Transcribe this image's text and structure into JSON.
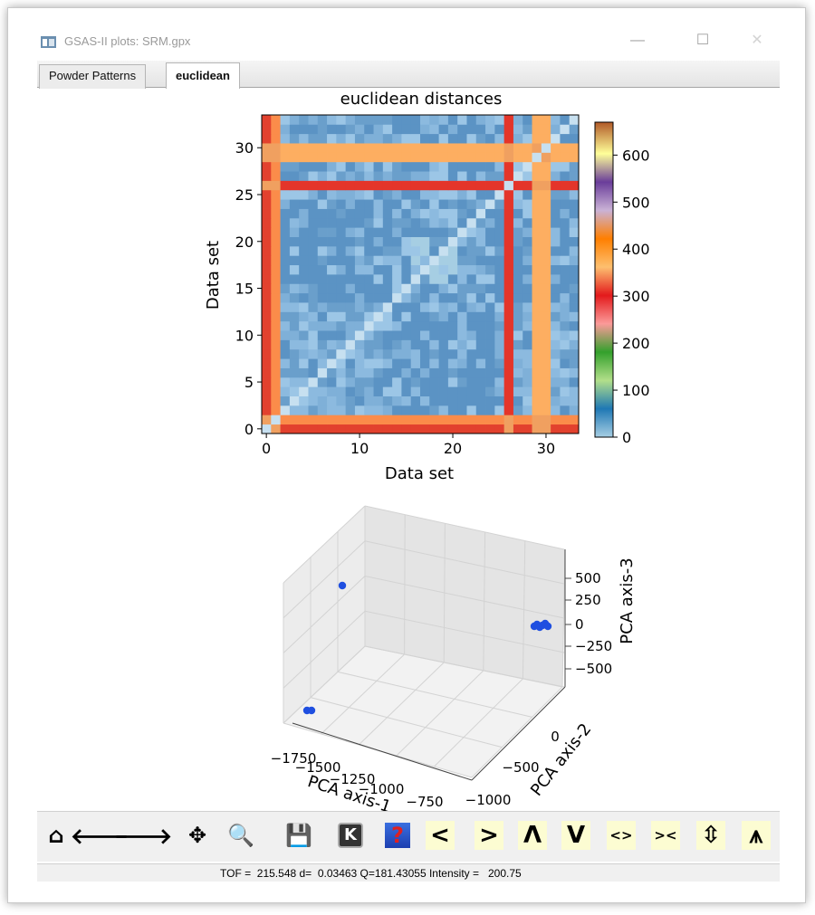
{
  "window": {
    "title": "GSAS-II plots: SRM.gpx",
    "minimize": "—",
    "maximize": "☐",
    "close": "✕"
  },
  "tabs": [
    {
      "label": "Powder Patterns",
      "active": false
    },
    {
      "label": "euclidean",
      "active": true
    }
  ],
  "heatmap": {
    "title": "euclidean distances",
    "xlabel": "Data set",
    "ylabel": "Data set",
    "x_ticks": [
      "0",
      "10",
      "20",
      "30"
    ],
    "y_ticks": [
      "0",
      "5",
      "10",
      "15",
      "20",
      "25",
      "30"
    ],
    "colorbar_ticks": [
      "0",
      "100",
      "200",
      "300",
      "400",
      "500",
      "600"
    ]
  },
  "pca3d": {
    "xlabel": "PCA axis-1",
    "ylabel": "PCA axis-2",
    "zlabel": "PCA axis-3",
    "x_ticks": [
      "-1750",
      "-1500",
      "-1250",
      "-1000",
      "-750"
    ],
    "y_ticks": [
      "0",
      "-500",
      "-1000"
    ],
    "z_ticks": [
      "500",
      "250",
      "0",
      "-250",
      "-500"
    ]
  },
  "chart_data": [
    {
      "type": "heatmap",
      "title": "euclidean distances",
      "xlabel": "Data set",
      "ylabel": "Data set",
      "xlim": [
        0,
        33
      ],
      "ylim": [
        0,
        33
      ],
      "colorbar_range": [
        0,
        670
      ],
      "colormap": "Paired",
      "n": 34,
      "outlier_rows": [
        {
          "index": 0,
          "distance": 290
        },
        {
          "index": 1,
          "distance": 380
        },
        {
          "index": 26,
          "distance": 330
        },
        {
          "index": 29,
          "distance": 420
        },
        {
          "index": 30,
          "distance": 400
        }
      ],
      "background_distance_range": [
        20,
        110
      ]
    },
    {
      "type": "scatter",
      "projection": "3d",
      "xlabel": "PCA axis-1",
      "ylabel": "PCA axis-2",
      "zlabel": "PCA axis-3",
      "color": "#1f4fe0",
      "points": [
        {
          "x": -1750,
          "y": -550,
          "z": 300
        },
        {
          "x": -1700,
          "y": 0,
          "z": -700
        },
        {
          "x": -1690,
          "y": 0,
          "z": -700
        },
        {
          "x": -700,
          "y": -150,
          "z": 0
        },
        {
          "x": -690,
          "y": -140,
          "z": 20
        },
        {
          "x": -680,
          "y": -130,
          "z": 10
        },
        {
          "x": -670,
          "y": -120,
          "z": 0
        },
        {
          "x": -665,
          "y": -110,
          "z": 15
        },
        {
          "x": -700,
          "y": -160,
          "z": -30
        }
      ]
    }
  ],
  "toolbar": {
    "buttons": [
      {
        "name": "home-button",
        "glyph": "⌂",
        "style": "plain"
      },
      {
        "name": "back-button",
        "glyph": "🡐",
        "style": "plain"
      },
      {
        "name": "forward-button",
        "glyph": "🡒",
        "style": "plain"
      },
      {
        "name": "pan-button",
        "glyph": "✥",
        "style": "plain"
      },
      {
        "name": "zoom-button",
        "glyph": "🔍",
        "style": "plain"
      },
      {
        "name": "save-button",
        "glyph": "💾",
        "style": "plain"
      },
      {
        "name": "key-button",
        "glyph": "K",
        "style": "key"
      },
      {
        "name": "help-button",
        "glyph": "?",
        "style": "help"
      },
      {
        "name": "shift-left-button",
        "glyph": "<",
        "style": "yel"
      },
      {
        "name": "shift-right-button",
        "glyph": ">",
        "style": "yel"
      },
      {
        "name": "shift-up-button",
        "glyph": "Λ",
        "style": "yel"
      },
      {
        "name": "shift-down-button",
        "glyph": "V",
        "style": "yel"
      },
      {
        "name": "expand-x-button",
        "glyph": "<>",
        "style": "yel"
      },
      {
        "name": "shrink-x-button",
        "glyph": "><",
        "style": "yel"
      },
      {
        "name": "expand-y-button",
        "glyph": "⇳",
        "style": "yel"
      },
      {
        "name": "shrink-y-button",
        "glyph": "⩚",
        "style": "yel"
      }
    ]
  },
  "status": {
    "text": "TOF =  215.548 d=  0.03463 Q=181.43055 Intensity =   200.75"
  }
}
